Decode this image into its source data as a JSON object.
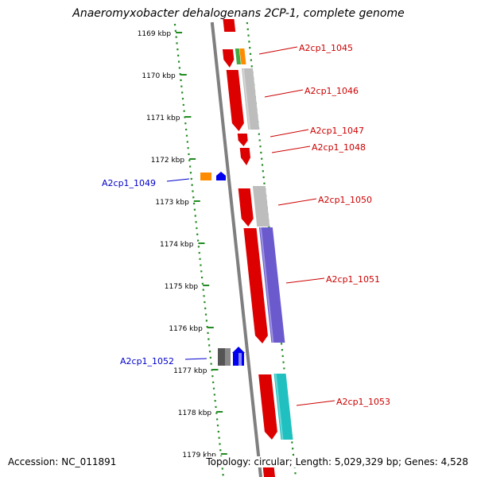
{
  "title": "Anaeromyxobacter dehalogenans 2CP-1, complete genome",
  "footer": {
    "accession": "Accession: NC_011891",
    "topology": "Topology: circular; Length: 5,029,329 bp; Genes: 4,528"
  },
  "colors": {
    "backbone": "#7f7f7f",
    "ruler": "#228b22",
    "forward_label": "#cc0000",
    "reverse_label": "#0000cc"
  },
  "ticks": [
    "1169 kbp",
    "1170 kbp",
    "1171 kbp",
    "1172 kbp",
    "1173 kbp",
    "1174 kbp",
    "1175 kbp",
    "1176 kbp",
    "1177 kbp",
    "1178 kbp",
    "1179 kbp"
  ],
  "genes": [
    {
      "label": "A2cp1_1045",
      "strand": "forward",
      "color": "#dd0000"
    },
    {
      "label": "A2cp1_1046",
      "strand": "forward",
      "color": "#dd0000"
    },
    {
      "label": "A2cp1_1047",
      "strand": "forward",
      "color": "#dd0000"
    },
    {
      "label": "A2cp1_1048",
      "strand": "forward",
      "color": "#dd0000"
    },
    {
      "label": "A2cp1_1049",
      "strand": "reverse",
      "color": "#0000ee"
    },
    {
      "label": "A2cp1_1050",
      "strand": "forward",
      "color": "#dd0000"
    },
    {
      "label": "A2cp1_1051",
      "strand": "forward",
      "color": "#dd0000"
    },
    {
      "label": "A2cp1_1052",
      "strand": "reverse",
      "color": "#0000ee"
    },
    {
      "label": "A2cp1_1053",
      "strand": "forward",
      "color": "#dd0000"
    }
  ]
}
